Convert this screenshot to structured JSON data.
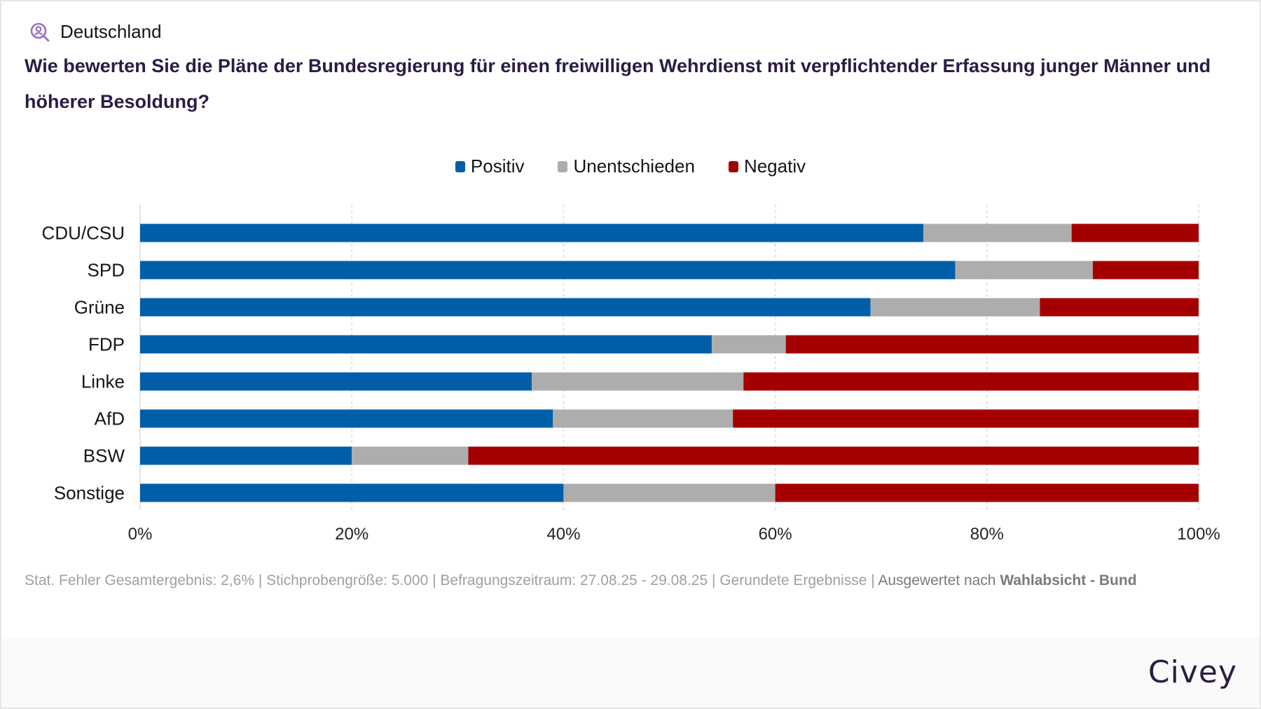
{
  "header": {
    "location_icon": "person-search-icon",
    "location": "Deutschland",
    "question": "Wie bewerten Sie die Pläne der Bundesregierung für einen freiwilligen Wehrdienst mit verpflichtender Erfassung junger Männer und höherer Besoldung?"
  },
  "legend": [
    {
      "label": "Positiv",
      "color": "#005ea8"
    },
    {
      "label": "Unentschieden",
      "color": "#adadad"
    },
    {
      "label": "Negativ",
      "color": "#a50000"
    }
  ],
  "chart_data": {
    "type": "bar",
    "orientation": "horizontal",
    "stacked": true,
    "title": "Wie bewerten Sie die Pläne der Bundesregierung für einen freiwilligen Wehrdienst mit verpflichtender Erfassung junger Männer und höherer Besoldung?",
    "xlabel": "",
    "ylabel": "",
    "categories": [
      "CDU/CSU",
      "SPD",
      "Grüne",
      "FDP",
      "Linke",
      "AfD",
      "BSW",
      "Sonstige"
    ],
    "series": [
      {
        "name": "Positiv",
        "color": "#005ea8",
        "values": [
          74,
          77,
          69,
          54,
          37,
          39,
          20,
          40
        ]
      },
      {
        "name": "Unentschieden",
        "color": "#adadad",
        "values": [
          14,
          13,
          16,
          7,
          20,
          17,
          11,
          20
        ]
      },
      {
        "name": "Negativ",
        "color": "#a50000",
        "values": [
          12,
          10,
          15,
          39,
          43,
          44,
          69,
          40
        ]
      }
    ],
    "xlim": [
      0,
      100
    ],
    "x_ticks": [
      "0%",
      "20%",
      "40%",
      "60%",
      "80%",
      "100%"
    ],
    "x_tick_values": [
      0,
      20,
      40,
      60,
      80,
      100
    ],
    "grid": true,
    "legend_position": "top-center"
  },
  "footer": {
    "note": "Stat. Fehler Gesamtergebnis: 2,6% | Stichprobengröße: 5.000 | Befragungszeitraum: 27.08.25 - 29.08.25 | Gerundete Ergebnisse | ",
    "evaluated_prefix": "Ausgewertet nach ",
    "evaluated_by": "Wahlabsicht - Bund",
    "brand": "Civey"
  }
}
